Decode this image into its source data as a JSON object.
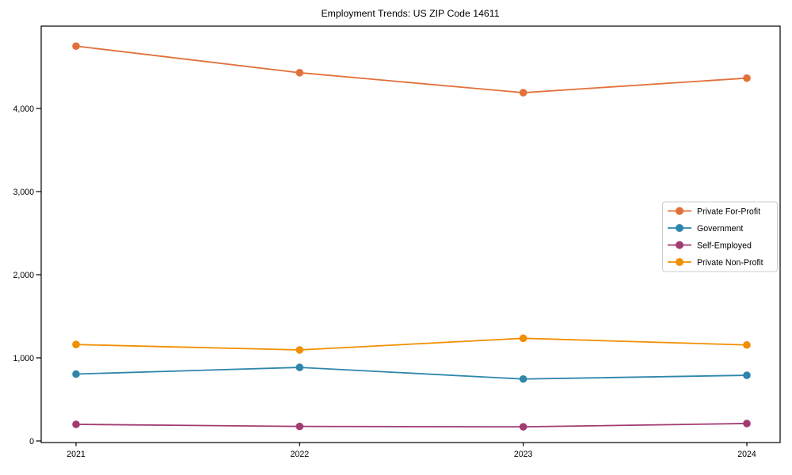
{
  "chart_data": {
    "type": "line",
    "title": "Employment Trends: US ZIP Code 14611",
    "categories": [
      "2021",
      "2022",
      "2023",
      "2024"
    ],
    "series": [
      {
        "name": "Private For-Profit",
        "color": "#E2703A",
        "values": [
          4750,
          4430,
          4190,
          4365
        ]
      },
      {
        "name": "Government",
        "color": "#2E86AB",
        "values": [
          805,
          885,
          745,
          790
        ]
      },
      {
        "name": "Self-Employed",
        "color": "#A23B72",
        "values": [
          200,
          175,
          170,
          210
        ]
      },
      {
        "name": "Private Non-Profit",
        "color": "#F18F01",
        "values": [
          1160,
          1095,
          1235,
          1155
        ]
      }
    ],
    "xlabel": "",
    "ylabel": "",
    "ylim": [
      0,
      5000
    ],
    "yticks": [
      0,
      1000,
      2000,
      3000,
      4000
    ],
    "ytick_labels": [
      "0",
      "1,000",
      "2,000",
      "3,000",
      "4,000"
    ],
    "grid": false,
    "legend_position": "center-right",
    "axis_color": "#000000",
    "plot_background": "#ffffff",
    "legend_border_color": "#cccccc"
  }
}
